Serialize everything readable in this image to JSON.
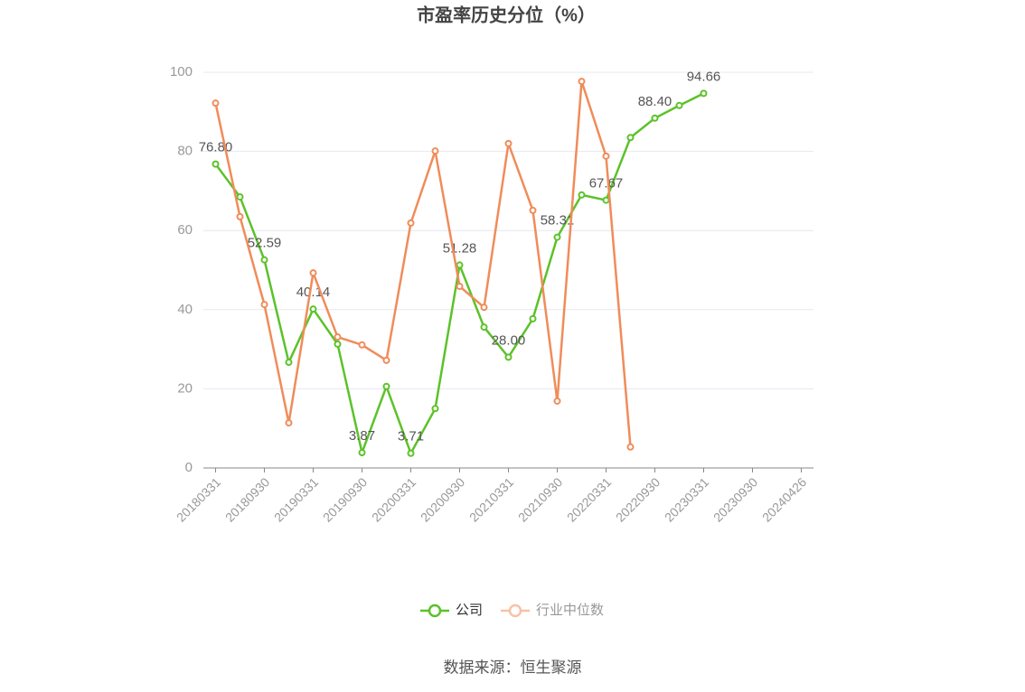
{
  "chart_data": {
    "type": "line",
    "title": "市盈率历史分位（%）",
    "categories": [
      "20180331",
      null,
      "20180930",
      null,
      "20190331",
      null,
      "20190930",
      null,
      "20200331",
      null,
      "20200930",
      null,
      "20210331",
      null,
      "20210930",
      null,
      "20220331",
      null,
      "20220930",
      null,
      "20230331",
      null,
      "20230930",
      null,
      "20240426"
    ],
    "series": [
      {
        "name": "公司",
        "color": "#5cc22a",
        "values": [
          76.8,
          68.5,
          52.59,
          26.7,
          40.14,
          31.3,
          3.87,
          20.6,
          3.71,
          15.0,
          51.28,
          35.6,
          28.0,
          37.7,
          58.31,
          69.0,
          67.67,
          83.5,
          88.4,
          91.6,
          94.66,
          null,
          null,
          null,
          null
        ],
        "value_labels": [
          "76.80",
          null,
          "52.59",
          null,
          "40.14",
          null,
          "3.87",
          null,
          "3.71",
          null,
          "51.28",
          null,
          "28.00",
          null,
          "58.31",
          null,
          "67.67",
          null,
          "88.40",
          null,
          "94.66",
          null,
          null,
          null,
          null
        ]
      },
      {
        "name": "行业中位数",
        "color": "#f08c5a",
        "values": [
          92.2,
          63.5,
          41.3,
          11.4,
          49.3,
          33.1,
          31.1,
          27.2,
          61.9,
          80.1,
          45.9,
          40.6,
          82.0,
          65.1,
          16.9,
          97.7,
          78.8,
          5.3,
          null,
          null,
          null,
          null,
          null,
          null,
          null
        ]
      }
    ],
    "ylim": [
      0,
      100
    ],
    "yticks": [
      0,
      20,
      40,
      60,
      80,
      100
    ],
    "grid": true,
    "legend": "bottom",
    "source": "数据来源：恒生聚源"
  }
}
